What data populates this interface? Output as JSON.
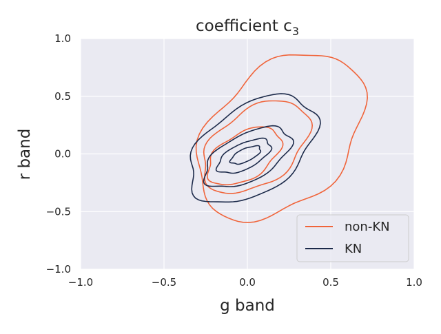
{
  "chart_data": {
    "type": "contour",
    "title": "coefficient c",
    "title_subscript": "3",
    "xlabel": "g band",
    "ylabel": "r band",
    "xlim": [
      -1.0,
      1.0
    ],
    "ylim": [
      -1.0,
      1.0
    ],
    "xticks": [
      "−1.0",
      "−0.5",
      "0.0",
      "0.5",
      "1.0"
    ],
    "yticks": [
      "−1.0",
      "−0.5",
      "0.0",
      "0.5",
      "1.0"
    ],
    "grid": true,
    "legend_position": "lower-right",
    "series": [
      {
        "name": "non-KN",
        "color": "#f0643a",
        "levels": [
          {
            "cx": 0.2,
            "cy": 0.15,
            "rx": 0.5,
            "ry": 0.67
          },
          {
            "cx": 0.05,
            "cy": 0.06,
            "rx": 0.32,
            "ry": 0.36
          },
          {
            "cx": -0.02,
            "cy": -0.02,
            "rx": 0.22,
            "ry": 0.22
          }
        ]
      },
      {
        "name": "KN",
        "color": "#1c2a4a",
        "levels": [
          {
            "cx": 0.03,
            "cy": 0.04,
            "rx": 0.38,
            "ry": 0.42
          },
          {
            "cx": 0.0,
            "cy": -0.03,
            "rx": 0.26,
            "ry": 0.22
          },
          {
            "cx": -0.02,
            "cy": -0.02,
            "rx": 0.16,
            "ry": 0.12
          },
          {
            "cx": -0.01,
            "cy": -0.01,
            "rx": 0.09,
            "ry": 0.06
          }
        ]
      }
    ]
  },
  "legend": {
    "items": [
      "non-KN",
      "KN"
    ]
  }
}
